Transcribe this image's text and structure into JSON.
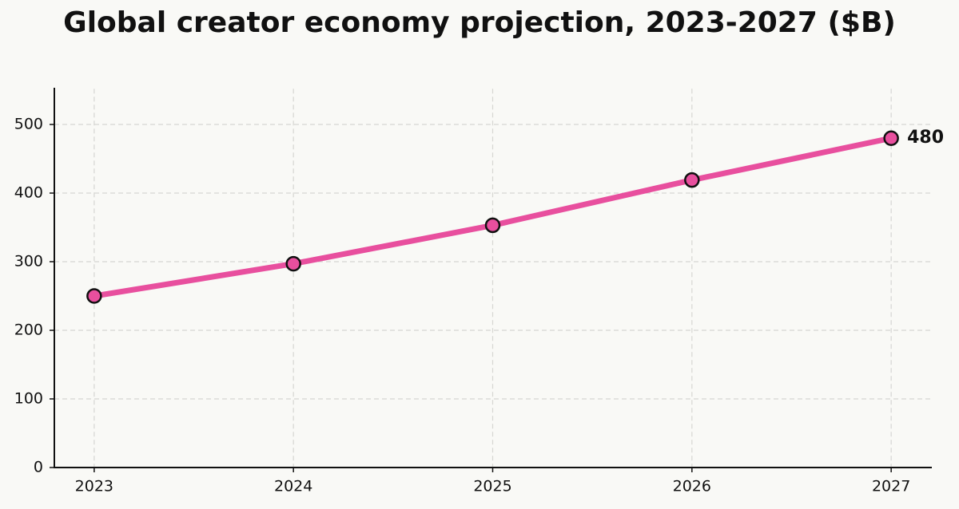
{
  "chart_data": {
    "type": "line",
    "title": "Global creator economy projection, 2023-2027 ($B)",
    "x": [
      2023,
      2024,
      2025,
      2026,
      2027
    ],
    "values": [
      250,
      297,
      353,
      419,
      480
    ],
    "color": "#e84f9e",
    "marker_edge": "#111111",
    "xlim": [
      2022.8,
      2027.2
    ],
    "xticks": [
      2023,
      2024,
      2025,
      2026,
      2027
    ],
    "ylim": [
      0,
      552
    ],
    "yticks": [
      0,
      100,
      200,
      300,
      400,
      500
    ],
    "grid": true,
    "label_last_point": true
  }
}
